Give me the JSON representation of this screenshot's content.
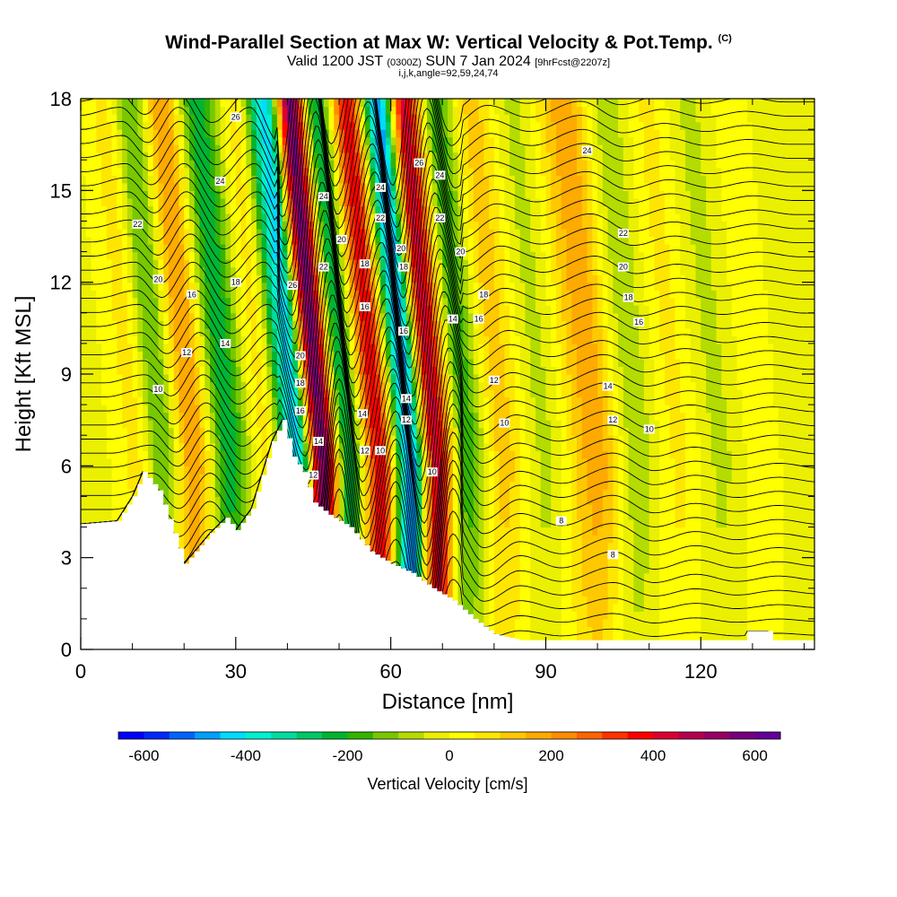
{
  "title": {
    "main": "Wind-Parallel Section at Max W: Vertical Velocity & Pot.Temp.",
    "copyright": "(C)",
    "valid_prefix": "Valid 1200 JST",
    "valid_utc": "(0300Z)",
    "valid_date": "SUN 7 Jan 2024",
    "forecast": "[9hrFcst@2207z]",
    "indices": "i,j,k,angle=92,59,24,74"
  },
  "chart_data": {
    "type": "heatmap",
    "xlabel": "Distance [nm]",
    "ylabel": "Height [Kft MSL]",
    "xlim": [
      0,
      142
    ],
    "ylim": [
      0,
      18
    ],
    "x_ticks": [
      "0",
      "30",
      "60",
      "90",
      "120"
    ],
    "x_tick_values": [
      0,
      30,
      60,
      90,
      120
    ],
    "y_ticks": [
      "0",
      "3",
      "6",
      "9",
      "12",
      "15",
      "18"
    ],
    "y_tick_values": [
      0,
      3,
      6,
      9,
      12,
      15,
      18
    ],
    "colorbar": {
      "label": "Vertical Velocity [cm/s]",
      "range": [
        -650,
        650
      ],
      "step": 50,
      "tick_labels": [
        "-600",
        "-400",
        "-200",
        "0",
        "200",
        "400",
        "600"
      ],
      "tick_values": [
        -600,
        -400,
        -200,
        0,
        200,
        400,
        600
      ],
      "colors": [
        "#0000ff",
        "#0028ff",
        "#0064ff",
        "#00a0ff",
        "#00dcff",
        "#00f0d2",
        "#00dca0",
        "#00c864",
        "#00b432",
        "#32b400",
        "#78c800",
        "#b4dc00",
        "#ebf000",
        "#ffff00",
        "#ffe600",
        "#ffc800",
        "#ffaa00",
        "#ff8c00",
        "#ff6400",
        "#ff3200",
        "#ff0000",
        "#dc0032",
        "#b40050",
        "#960064",
        "#78007d",
        "#640096"
      ]
    },
    "vertical_velocity_columns": [
      {
        "x": 3,
        "w": -20
      },
      {
        "x": 11,
        "w": 60
      },
      {
        "x": 16,
        "w": -150
      },
      {
        "x": 22,
        "w": 200
      },
      {
        "x": 29,
        "w": -230
      },
      {
        "x": 36,
        "w": 60
      },
      {
        "x": 42,
        "w": -420
      },
      {
        "x": 47,
        "w": 560
      },
      {
        "x": 52,
        "w": -250
      },
      {
        "x": 58,
        "w": 380
      },
      {
        "x": 64,
        "w": -480
      },
      {
        "x": 69,
        "w": 420
      },
      {
        "x": 75,
        "w": -180
      },
      {
        "x": 82,
        "w": 120
      },
      {
        "x": 90,
        "w": -60
      },
      {
        "x": 100,
        "w": 180
      },
      {
        "x": 108,
        "w": -80
      },
      {
        "x": 116,
        "w": 60
      },
      {
        "x": 124,
        "w": -60
      },
      {
        "x": 132,
        "w": 30
      },
      {
        "x": 140,
        "w": -40
      }
    ],
    "terrain": [
      {
        "x": 0,
        "h": 4.1
      },
      {
        "x": 7,
        "h": 4.2
      },
      {
        "x": 10,
        "h": 5.0
      },
      {
        "x": 12,
        "h": 5.8
      },
      {
        "x": 15,
        "h": 5.2
      },
      {
        "x": 18,
        "h": 3.8
      },
      {
        "x": 20,
        "h": 2.8
      },
      {
        "x": 22,
        "h": 3.2
      },
      {
        "x": 25,
        "h": 3.8
      },
      {
        "x": 28,
        "h": 4.3
      },
      {
        "x": 30,
        "h": 3.9
      },
      {
        "x": 33,
        "h": 4.6
      },
      {
        "x": 37,
        "h": 6.8
      },
      {
        "x": 39,
        "h": 7.5
      },
      {
        "x": 41,
        "h": 6.3
      },
      {
        "x": 43,
        "h": 5.8
      },
      {
        "x": 45,
        "h": 4.8
      },
      {
        "x": 48,
        "h": 4.4
      },
      {
        "x": 52,
        "h": 4.0
      },
      {
        "x": 56,
        "h": 3.2
      },
      {
        "x": 60,
        "h": 2.8
      },
      {
        "x": 64,
        "h": 2.5
      },
      {
        "x": 68,
        "h": 2.0
      },
      {
        "x": 72,
        "h": 1.6
      },
      {
        "x": 76,
        "h": 1.0
      },
      {
        "x": 80,
        "h": 0.5
      },
      {
        "x": 85,
        "h": 0.3
      },
      {
        "x": 128,
        "h": 0.3
      },
      {
        "x": 129,
        "h": 0.6
      },
      {
        "x": 133,
        "h": 0.6
      },
      {
        "x": 134,
        "h": 0.3
      },
      {
        "x": 142,
        "h": 0.3
      }
    ],
    "theta_contours": {
      "levels": [
        8,
        10,
        12,
        14,
        16,
        18,
        20,
        22,
        24,
        26
      ],
      "labels": [
        {
          "x": 103,
          "y": 3.1,
          "text": "8"
        },
        {
          "x": 93,
          "y": 4.2,
          "text": "8"
        },
        {
          "x": 15,
          "y": 8.5,
          "text": "10"
        },
        {
          "x": 58,
          "y": 6.5,
          "text": "10"
        },
        {
          "x": 82,
          "y": 7.4,
          "text": "10"
        },
        {
          "x": 110,
          "y": 7.2,
          "text": "10"
        },
        {
          "x": 68,
          "y": 5.8,
          "text": "10"
        },
        {
          "x": 20.5,
          "y": 9.7,
          "text": "12"
        },
        {
          "x": 45,
          "y": 5.7,
          "text": "12"
        },
        {
          "x": 55,
          "y": 6.5,
          "text": "12"
        },
        {
          "x": 63,
          "y": 7.5,
          "text": "12"
        },
        {
          "x": 80,
          "y": 8.8,
          "text": "12"
        },
        {
          "x": 103,
          "y": 7.5,
          "text": "12"
        },
        {
          "x": 28,
          "y": 10.0,
          "text": "14"
        },
        {
          "x": 46,
          "y": 6.8,
          "text": "14"
        },
        {
          "x": 54.5,
          "y": 7.7,
          "text": "14"
        },
        {
          "x": 63,
          "y": 8.2,
          "text": "14"
        },
        {
          "x": 72,
          "y": 10.8,
          "text": "14"
        },
        {
          "x": 102,
          "y": 8.6,
          "text": "14"
        },
        {
          "x": 21.5,
          "y": 11.6,
          "text": "16"
        },
        {
          "x": 42.5,
          "y": 7.8,
          "text": "16"
        },
        {
          "x": 55,
          "y": 11.2,
          "text": "16"
        },
        {
          "x": 62.5,
          "y": 10.4,
          "text": "16"
        },
        {
          "x": 77,
          "y": 10.8,
          "text": "16"
        },
        {
          "x": 108,
          "y": 10.7,
          "text": "16"
        },
        {
          "x": 30,
          "y": 12.0,
          "text": "18"
        },
        {
          "x": 42.5,
          "y": 8.7,
          "text": "18"
        },
        {
          "x": 55,
          "y": 12.6,
          "text": "18"
        },
        {
          "x": 62.5,
          "y": 12.5,
          "text": "18"
        },
        {
          "x": 78,
          "y": 11.6,
          "text": "18"
        },
        {
          "x": 106,
          "y": 11.5,
          "text": "18"
        },
        {
          "x": 15,
          "y": 12.1,
          "text": "20"
        },
        {
          "x": 42.5,
          "y": 9.6,
          "text": "20"
        },
        {
          "x": 50.5,
          "y": 13.4,
          "text": "20"
        },
        {
          "x": 62,
          "y": 13.1,
          "text": "20"
        },
        {
          "x": 73.5,
          "y": 13.0,
          "text": "20"
        },
        {
          "x": 105,
          "y": 12.5,
          "text": "20"
        },
        {
          "x": 11,
          "y": 13.9,
          "text": "22"
        },
        {
          "x": 47,
          "y": 12.5,
          "text": "22"
        },
        {
          "x": 58,
          "y": 14.1,
          "text": "22"
        },
        {
          "x": 69.5,
          "y": 14.1,
          "text": "22"
        },
        {
          "x": 105,
          "y": 13.6,
          "text": "22"
        },
        {
          "x": 27,
          "y": 15.3,
          "text": "24"
        },
        {
          "x": 47,
          "y": 14.8,
          "text": "24"
        },
        {
          "x": 58,
          "y": 15.1,
          "text": "24"
        },
        {
          "x": 69.5,
          "y": 15.5,
          "text": "24"
        },
        {
          "x": 98,
          "y": 16.3,
          "text": "24"
        },
        {
          "x": 30,
          "y": 17.4,
          "text": "26"
        },
        {
          "x": 41,
          "y": 11.9,
          "text": "26"
        },
        {
          "x": 65.5,
          "y": 15.9,
          "text": "26"
        }
      ]
    }
  }
}
